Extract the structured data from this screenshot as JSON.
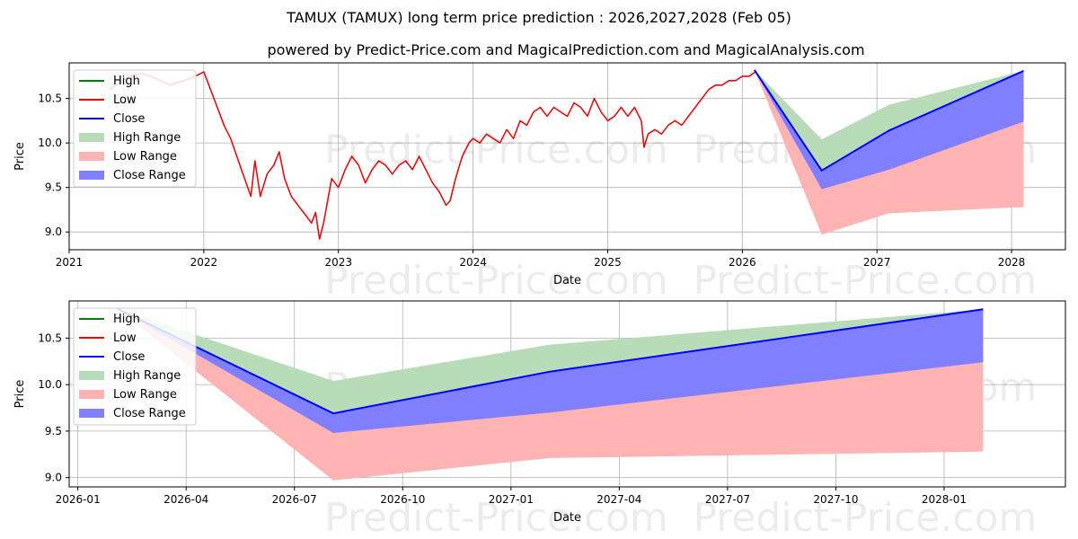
{
  "chart_title": "TAMUX (TAMUX) long term price prediction : 2026,2027,2028 (Feb 05)",
  "chart_subtitle": "powered by Predict-Price.com and MagicalPrediction.com and MagicalAnalysis.com",
  "watermark": "Predict-Price.com",
  "legend": [
    "High",
    "Low",
    "Close",
    "High Range",
    "Low Range",
    "Close Range"
  ],
  "colors": {
    "high": "#008000",
    "low": "#ff0000",
    "close": "#0000ff",
    "hist": "#dd1111",
    "high_range": "#b7dcb7",
    "low_range": "#ffb3b3",
    "close_range": "#7f7fff",
    "grid": "#b0b0b0"
  },
  "chart_data": [
    {
      "type": "line",
      "name": "long-term",
      "xlabel": "Date",
      "ylabel": "Price",
      "xlim": [
        2021.0,
        2028.4
      ],
      "ylim": [
        8.8,
        10.9
      ],
      "x_ticks": [
        2021,
        2022,
        2023,
        2024,
        2025,
        2026,
        2027,
        2028
      ],
      "x_tick_labels": [
        "2021",
        "2022",
        "2023",
        "2024",
        "2025",
        "2026",
        "2027",
        "2028"
      ],
      "y_ticks": [
        9.0,
        9.5,
        10.0,
        10.5
      ],
      "y_tick_labels": [
        "9.0",
        "9.5",
        "10.0",
        "10.5"
      ],
      "history": {
        "name": "Low",
        "x": [
          2021.3,
          2021.45,
          2021.55,
          2021.65,
          2021.75,
          2021.85,
          2021.95,
          2022.0,
          2022.05,
          2022.1,
          2022.15,
          2022.2,
          2022.28,
          2022.35,
          2022.38,
          2022.42,
          2022.47,
          2022.52,
          2022.56,
          2022.6,
          2022.65,
          2022.7,
          2022.75,
          2022.8,
          2022.83,
          2022.86,
          2022.89,
          2022.95,
          2023.0,
          2023.05,
          2023.1,
          2023.15,
          2023.2,
          2023.25,
          2023.3,
          2023.35,
          2023.4,
          2023.45,
          2023.5,
          2023.55,
          2023.6,
          2023.65,
          2023.7,
          2023.75,
          2023.8,
          2023.83,
          2023.87,
          2023.92,
          2023.97,
          2024.0,
          2024.05,
          2024.1,
          2024.15,
          2024.2,
          2024.25,
          2024.3,
          2024.35,
          2024.4,
          2024.45,
          2024.5,
          2024.55,
          2024.6,
          2024.65,
          2024.7,
          2024.75,
          2024.8,
          2024.85,
          2024.9,
          2024.95,
          2025.0,
          2025.05,
          2025.1,
          2025.15,
          2025.2,
          2025.25,
          2025.27,
          2025.3,
          2025.35,
          2025.4,
          2025.45,
          2025.5,
          2025.55,
          2025.6,
          2025.65,
          2025.7,
          2025.75,
          2025.8,
          2025.85,
          2025.9,
          2025.95,
          2026.0,
          2026.05,
          2026.1
        ],
        "values": [
          10.6,
          10.75,
          10.78,
          10.72,
          10.65,
          10.7,
          10.76,
          10.8,
          10.6,
          10.4,
          10.2,
          10.05,
          9.7,
          9.4,
          9.8,
          9.4,
          9.65,
          9.75,
          9.9,
          9.6,
          9.4,
          9.3,
          9.2,
          9.1,
          9.22,
          8.92,
          9.1,
          9.6,
          9.5,
          9.7,
          9.85,
          9.75,
          9.55,
          9.7,
          9.8,
          9.75,
          9.65,
          9.75,
          9.8,
          9.7,
          9.85,
          9.7,
          9.55,
          9.45,
          9.3,
          9.35,
          9.6,
          9.85,
          10.0,
          10.05,
          10.0,
          10.1,
          10.05,
          10.0,
          10.15,
          10.05,
          10.25,
          10.2,
          10.35,
          10.4,
          10.3,
          10.4,
          10.35,
          10.3,
          10.45,
          10.4,
          10.3,
          10.5,
          10.35,
          10.25,
          10.3,
          10.4,
          10.3,
          10.4,
          10.25,
          9.95,
          10.1,
          10.15,
          10.1,
          10.2,
          10.25,
          10.2,
          10.3,
          10.4,
          10.5,
          10.6,
          10.65,
          10.65,
          10.7,
          10.7,
          10.75,
          10.75,
          10.8
        ]
      },
      "forecast": {
        "x": [
          2026.09,
          2026.59,
          2027.09,
          2028.09
        ],
        "close": [
          10.82,
          9.69,
          10.14,
          10.81
        ],
        "high_upper": [
          10.82,
          10.04,
          10.43,
          10.81
        ],
        "low_lower": [
          10.82,
          8.97,
          9.21,
          9.28
        ],
        "close_upper": [
          10.82,
          9.69,
          10.14,
          10.81
        ],
        "close_lower": [
          10.82,
          9.48,
          9.7,
          10.24
        ]
      }
    },
    {
      "type": "area",
      "name": "zoomed-forecast",
      "xlabel": "Date",
      "ylabel": "Price",
      "xlim": [
        2025.98,
        2028.28
      ],
      "ylim": [
        8.9,
        10.9
      ],
      "x_ticks": [
        2026.0,
        2026.25,
        2026.5,
        2026.75,
        2027.0,
        2027.25,
        2027.5,
        2027.75,
        2028.0
      ],
      "x_tick_labels": [
        "2026-01",
        "2026-04",
        "2026-07",
        "2026-10",
        "2027-01",
        "2027-04",
        "2027-07",
        "2027-10",
        "2028-01"
      ],
      "y_ticks": [
        9.0,
        9.5,
        10.0,
        10.5
      ],
      "y_tick_labels": [
        "9.0",
        "9.5",
        "10.0",
        "10.5"
      ],
      "forecast": {
        "x": [
          2026.09,
          2026.59,
          2027.09,
          2028.09
        ],
        "close": [
          10.82,
          9.69,
          10.14,
          10.81
        ],
        "high_upper": [
          10.82,
          10.04,
          10.43,
          10.81
        ],
        "low_lower": [
          10.82,
          8.97,
          9.21,
          9.28
        ],
        "close_upper": [
          10.82,
          9.69,
          10.14,
          10.81
        ],
        "close_lower": [
          10.82,
          9.48,
          9.7,
          10.24
        ]
      }
    }
  ]
}
